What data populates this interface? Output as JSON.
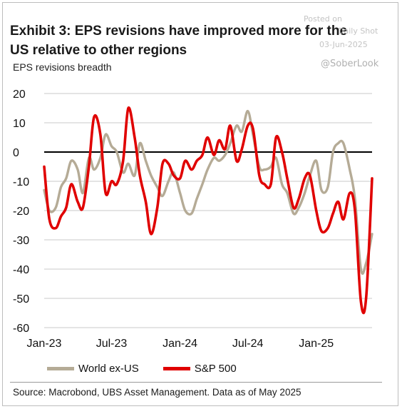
{
  "title": "Exhibit 3: EPS revisions have improved more for the US relative to other regions",
  "subtitle": "EPS revisions breadth",
  "source": "Source: Macrobond, UBS Asset Management. Data as of May 2025",
  "watermark": {
    "line1": "Posted on",
    "line2": "Daily Shot",
    "line3": "03-Jun-2025",
    "handle": "@SoberLook"
  },
  "chart_data": {
    "type": "line",
    "title": "Exhibit 3: EPS revisions have improved more for the US relative to other regions",
    "ylabel": "EPS revisions breadth",
    "xlabel": "",
    "x": [
      "2023-01-01",
      "2023-01-15",
      "2023-02-01",
      "2023-02-15",
      "2023-03-01",
      "2023-03-15",
      "2023-04-01",
      "2023-04-15",
      "2023-05-01",
      "2023-05-15",
      "2023-06-01",
      "2023-06-15",
      "2023-07-01",
      "2023-07-15",
      "2023-08-01",
      "2023-08-15",
      "2023-09-01",
      "2023-09-15",
      "2023-10-01",
      "2023-10-15",
      "2023-11-01",
      "2023-11-15",
      "2023-12-01",
      "2023-12-15",
      "2024-01-01",
      "2024-01-15",
      "2024-02-01",
      "2024-02-15",
      "2024-03-01",
      "2024-03-15",
      "2024-04-01",
      "2024-04-15",
      "2024-05-01",
      "2024-05-15",
      "2024-06-01",
      "2024-06-15",
      "2024-07-01",
      "2024-07-15",
      "2024-08-01",
      "2024-08-15",
      "2024-09-01",
      "2024-09-15",
      "2024-10-01",
      "2024-10-15",
      "2024-11-01",
      "2024-11-15",
      "2024-12-01",
      "2024-12-15",
      "2025-01-01",
      "2025-01-15",
      "2025-02-01",
      "2025-02-15",
      "2025-03-01",
      "2025-03-15",
      "2025-04-01",
      "2025-04-15",
      "2025-05-01",
      "2025-05-15",
      "2025-05-31"
    ],
    "x_ticks": [
      "Jan-23",
      "Jul-23",
      "Jan-24",
      "Jul-24",
      "Jan-25"
    ],
    "x_tick_dates": [
      "2023-01-01",
      "2023-07-01",
      "2024-01-01",
      "2024-07-01",
      "2025-01-01"
    ],
    "ylim": [
      -60,
      20
    ],
    "y_ticks": [
      20,
      10,
      0,
      -10,
      -20,
      -30,
      -40,
      -50,
      -60
    ],
    "grid": true,
    "zero_line": true,
    "legend_position": "bottom",
    "series": [
      {
        "name": "World ex-US",
        "color": "#b5ab96",
        "values": [
          -13,
          -20,
          -19,
          -12,
          -9,
          -3,
          -6,
          -14,
          -2,
          -6,
          -2,
          6,
          2,
          0,
          -7,
          -4,
          -8,
          3,
          -3,
          -8,
          -12,
          -15,
          -10,
          -7,
          -14,
          -20,
          -21,
          -16,
          -11,
          -6,
          -2,
          -3,
          -1,
          3,
          9,
          7,
          14,
          6,
          -5,
          -6,
          -5,
          -2,
          -11,
          -14,
          -21,
          -19,
          -14,
          -8,
          -3,
          -13,
          -12,
          0,
          3,
          3,
          -6,
          -16,
          -40,
          -38,
          -28
        ]
      },
      {
        "name": "S&P 500",
        "color": "#e00000",
        "values": [
          -5,
          -23,
          -26,
          -22,
          -19,
          -11,
          -17,
          -19,
          -5,
          12,
          6,
          -14,
          -10,
          -11,
          -3,
          15,
          5,
          -8,
          -17,
          -28,
          -19,
          -4,
          -4,
          -8,
          -9,
          -3,
          -6,
          -3,
          -1,
          5,
          -1,
          4,
          1,
          9,
          -3,
          1,
          9,
          8,
          -8,
          -11,
          -11,
          5,
          0,
          -9,
          -19,
          -16,
          -9,
          -8,
          -20,
          -27,
          -26,
          -21,
          -17,
          -23,
          -14,
          -20,
          -51,
          -50,
          -9
        ]
      }
    ]
  }
}
